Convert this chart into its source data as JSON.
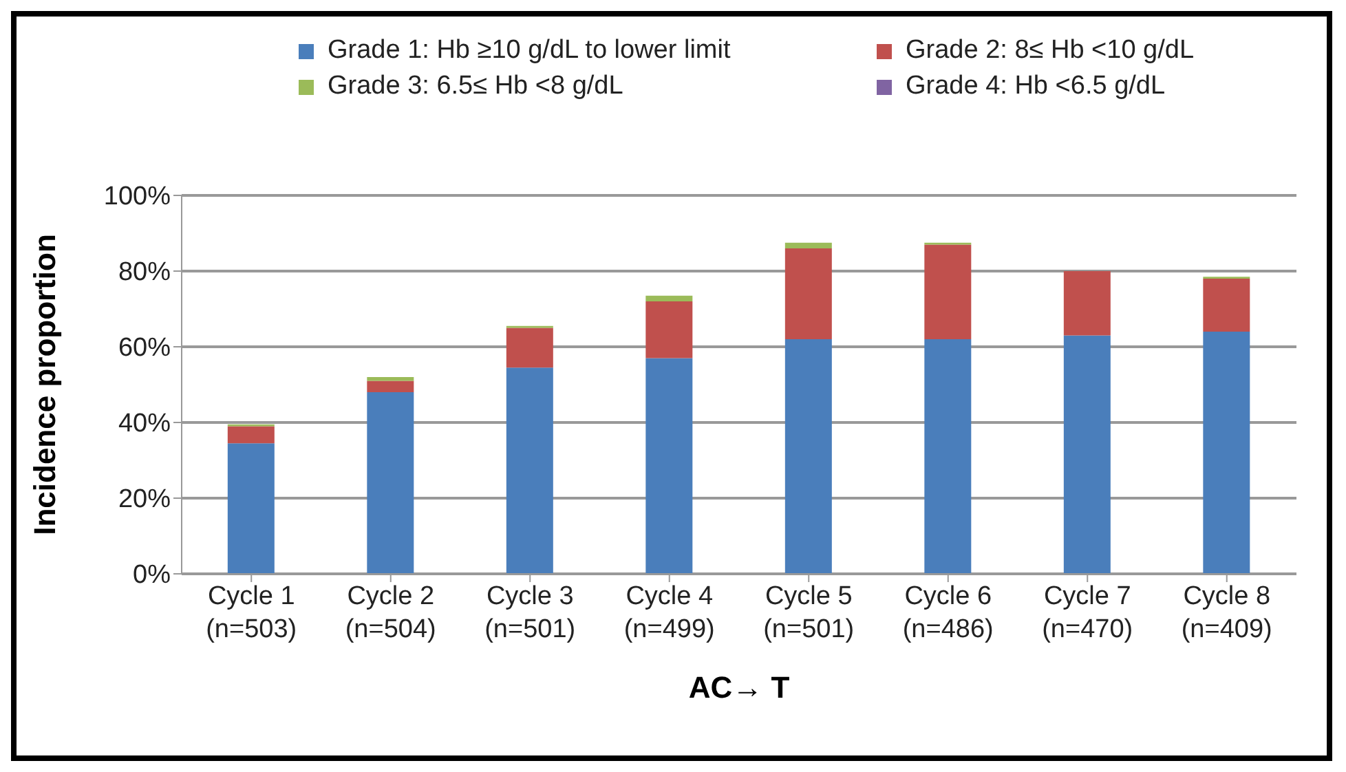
{
  "chart_data": {
    "type": "bar",
    "stacked": true,
    "xlabel": "AC→ T",
    "ylabel": "Incidence proportion",
    "categories": [
      "Cycle 1\n(n=503)",
      "Cycle 2\n(n=504)",
      "Cycle 3\n(n=501)",
      "Cycle 4\n(n=499)",
      "Cycle 5\n(n=501)",
      "Cycle 6\n(n=486)",
      "Cycle 7\n(n=470)",
      "Cycle 8\n(n=409)"
    ],
    "series": [
      {
        "name": "Grade 1: Hb ≥10 g/dL to lower limit",
        "color": "#4a7ebb",
        "values": [
          34.5,
          48,
          54.5,
          57,
          62,
          62,
          63,
          64
        ]
      },
      {
        "name": "Grade 2: 8≤ Hb <10 g/dL",
        "color": "#c0504d",
        "values": [
          4.5,
          3,
          10.5,
          15,
          24,
          25,
          17,
          14
        ]
      },
      {
        "name": "Grade 3: 6.5≤ Hb <8 g/dL",
        "color": "#9bbb59",
        "values": [
          0.5,
          1,
          0.5,
          1.5,
          1.5,
          0.5,
          0,
          0.5
        ]
      },
      {
        "name": "Grade 4: Hb <6.5 g/dL",
        "color": "#8064a2",
        "values": [
          0,
          0,
          0,
          0,
          0,
          0,
          0,
          0
        ]
      }
    ],
    "ylim": [
      0,
      100
    ],
    "yticks": [
      {
        "value": 0,
        "label": "0%"
      },
      {
        "value": 20,
        "label": "20%"
      },
      {
        "value": 40,
        "label": "40%"
      },
      {
        "value": 60,
        "label": "60%"
      },
      {
        "value": 80,
        "label": "80%"
      },
      {
        "value": 100,
        "label": "100%"
      }
    ],
    "grid": "y",
    "legend": "top"
  }
}
